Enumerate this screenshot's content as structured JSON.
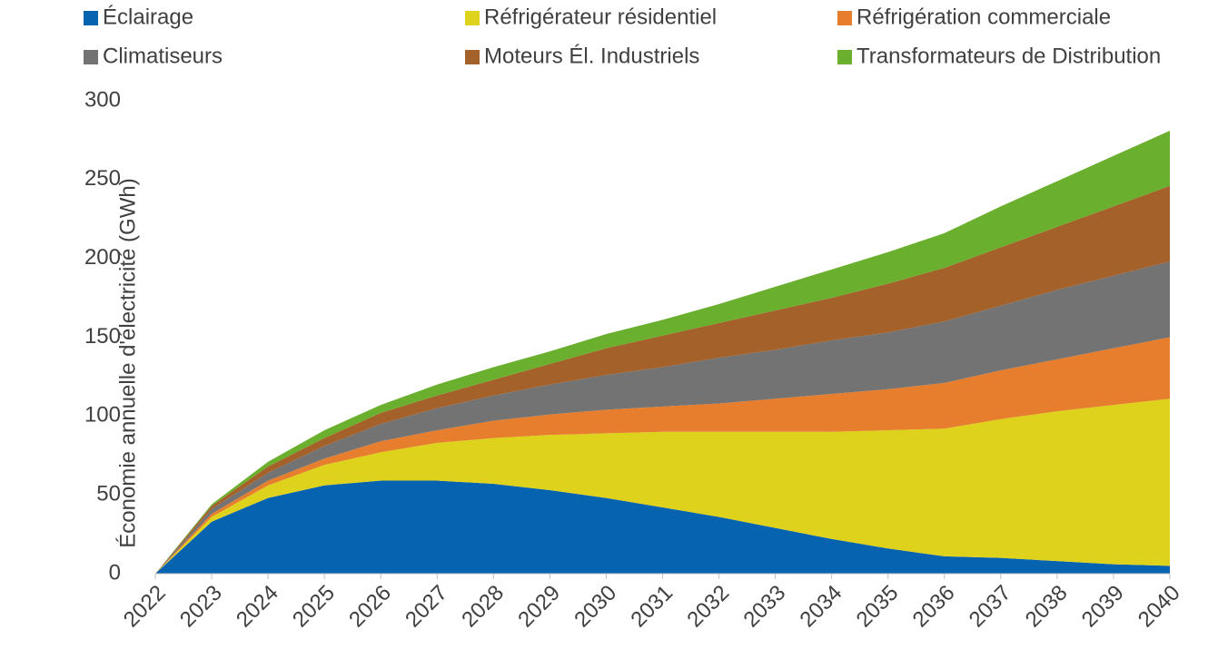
{
  "chart_data": {
    "type": "area",
    "stacked": true,
    "ylabel": "Économie annuelle d'électricité (GWh)",
    "categories": [
      "2022",
      "2023",
      "2024",
      "2025",
      "2026",
      "2027",
      "2028",
      "2029",
      "2030",
      "2031",
      "2032",
      "2033",
      "2034",
      "2035",
      "2036",
      "2037",
      "2038",
      "2039",
      "2040"
    ],
    "series": [
      {
        "name": "Éclairage",
        "color": "#0563b0",
        "values": [
          0,
          33,
          48,
          56,
          59,
          59,
          57,
          53,
          48,
          42,
          36,
          29,
          22,
          16,
          11,
          10,
          8,
          6,
          5
        ]
      },
      {
        "name": "Réfrigérateur résidentiel",
        "color": "#dfd21c",
        "values": [
          0,
          3,
          8,
          13,
          18,
          24,
          29,
          35,
          41,
          48,
          54,
          61,
          68,
          75,
          81,
          88,
          95,
          101,
          106
        ]
      },
      {
        "name": "Réfrigération commerciale",
        "color": "#e67e2e",
        "values": [
          0,
          2,
          3,
          4,
          7,
          8,
          11,
          13,
          15,
          16,
          18,
          21,
          24,
          26,
          29,
          31,
          33,
          36,
          39
        ]
      },
      {
        "name": "Climatiseurs",
        "color": "#737373",
        "values": [
          0,
          3,
          5,
          8,
          11,
          14,
          16,
          19,
          22,
          25,
          29,
          31,
          34,
          36,
          39,
          41,
          44,
          46,
          48
        ]
      },
      {
        "name": "Moteurs Él. Industriels",
        "color": "#a5612a",
        "values": [
          0,
          2,
          4,
          5,
          7,
          8,
          10,
          13,
          17,
          20,
          22,
          25,
          27,
          31,
          34,
          37,
          40,
          44,
          48
        ]
      },
      {
        "name": "Transformateurs de Distribution",
        "color": "#6aaf2e",
        "values": [
          0,
          1,
          3,
          5,
          5,
          7,
          8,
          8,
          9,
          10,
          12,
          15,
          18,
          20,
          22,
          26,
          29,
          32,
          35
        ]
      }
    ],
    "ylim": [
      0,
      300
    ],
    "yticks": [
      0,
      50,
      100,
      150,
      200,
      250,
      300
    ],
    "grid": false,
    "legend": "top"
  }
}
